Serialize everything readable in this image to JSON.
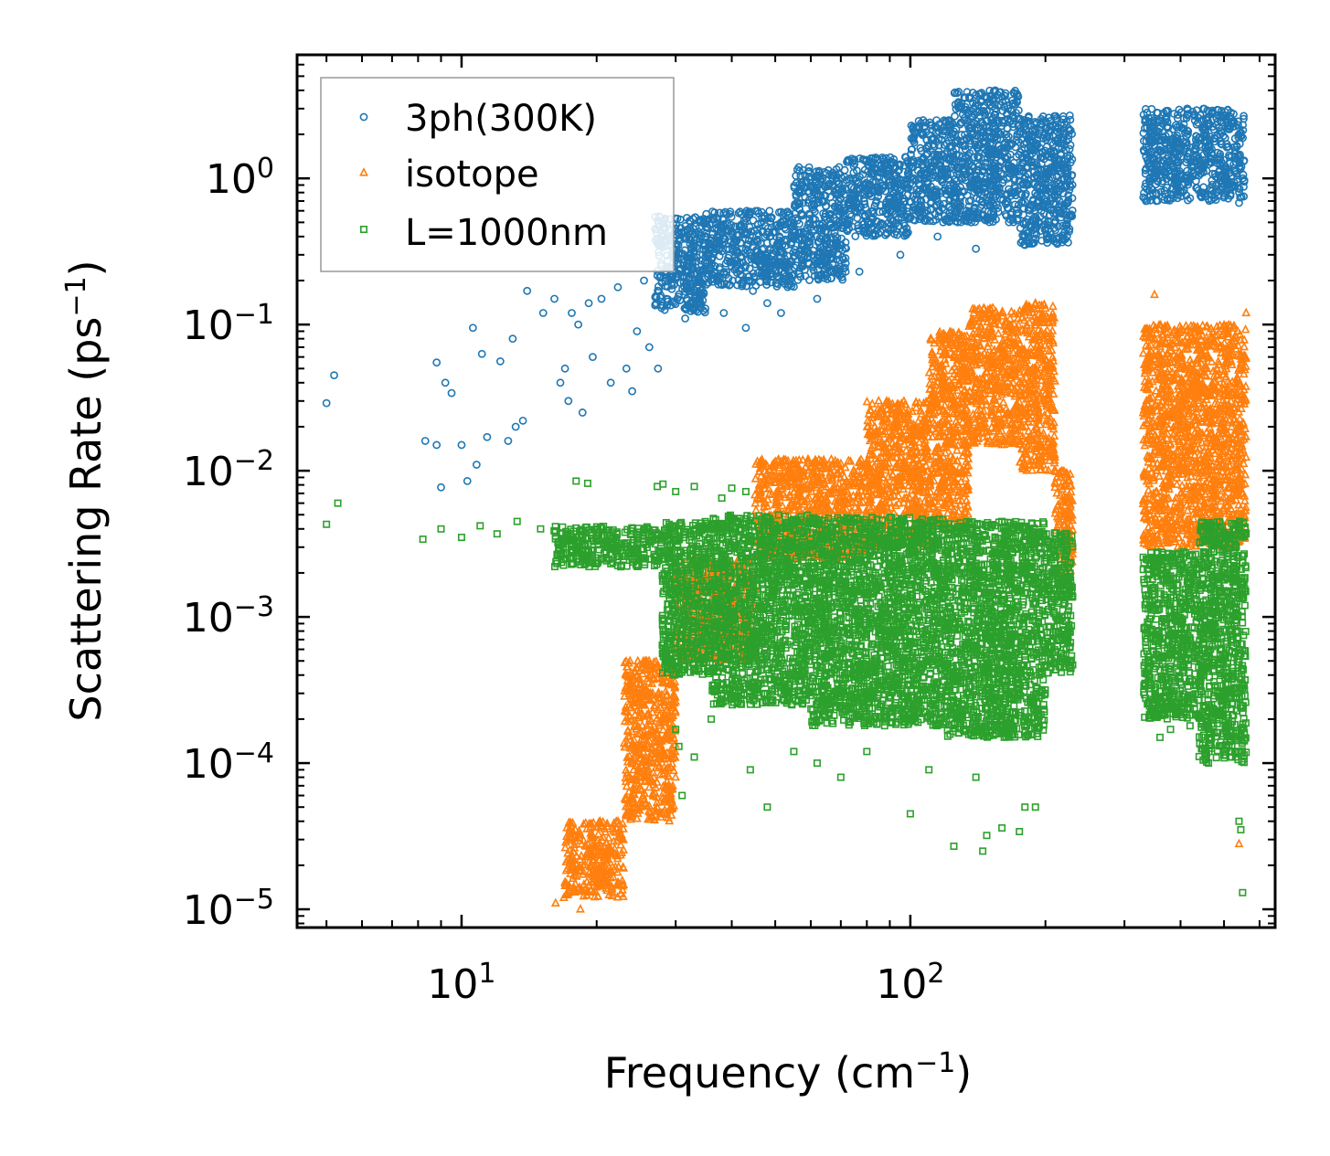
{
  "chart_data": {
    "type": "scatter",
    "title": "",
    "xlabel": {
      "base": "Frequency (cm",
      "sup": "−1",
      "tail": ")"
    },
    "ylabel": {
      "base": "Scattering Rate (ps",
      "sup": "−1",
      "tail": ")"
    },
    "x_scale": "log",
    "y_scale": "log",
    "xlim": [
      4.3,
      650
    ],
    "ylim": [
      7.5e-06,
      7.0
    ],
    "x_ticks": [
      {
        "value": 10,
        "base": "10",
        "exp": "1"
      },
      {
        "value": 100,
        "base": "10",
        "exp": "2"
      }
    ],
    "y_ticks": [
      {
        "value": 1e-05,
        "base": "10",
        "exp": "−5"
      },
      {
        "value": 0.0001,
        "base": "10",
        "exp": "−4"
      },
      {
        "value": 0.001,
        "base": "10",
        "exp": "−3"
      },
      {
        "value": 0.01,
        "base": "10",
        "exp": "−2"
      },
      {
        "value": 0.1,
        "base": "10",
        "exp": "−1"
      },
      {
        "value": 1,
        "base": "10",
        "exp": "0"
      }
    ],
    "legend_position": "top-left",
    "series": [
      {
        "name": "3ph(300K)",
        "marker": "circle",
        "color": "#1f77b4",
        "points": [
          [
            5,
            0.029
          ],
          [
            5.2,
            0.045
          ],
          [
            8.3,
            0.016
          ],
          [
            8.8,
            0.015
          ],
          [
            8.8,
            0.055
          ],
          [
            9.0,
            0.0077
          ],
          [
            9.2,
            0.04
          ],
          [
            9.5,
            0.034
          ],
          [
            10,
            0.015
          ],
          [
            10.3,
            0.0085
          ],
          [
            10.6,
            0.095
          ],
          [
            10.8,
            0.011
          ],
          [
            11.1,
            0.063
          ],
          [
            11.4,
            0.017
          ],
          [
            12.2,
            0.056
          ],
          [
            12.7,
            0.016
          ],
          [
            13.0,
            0.08
          ],
          [
            13.2,
            0.02
          ],
          [
            13.7,
            0.022
          ],
          [
            14.0,
            0.17
          ],
          [
            15.2,
            0.12
          ],
          [
            16.1,
            0.15
          ],
          [
            16.6,
            0.04
          ],
          [
            17,
            0.05
          ],
          [
            17.3,
            0.03
          ],
          [
            17.6,
            0.12
          ],
          [
            18.2,
            0.1
          ],
          [
            18.6,
            0.025
          ],
          [
            19.2,
            0.14
          ],
          [
            19.6,
            0.06
          ],
          [
            20.5,
            0.15
          ],
          [
            21.5,
            0.04
          ],
          [
            22.3,
            0.18
          ],
          [
            23.3,
            0.05
          ],
          [
            24,
            0.035
          ],
          [
            24.6,
            0.09
          ],
          [
            25.5,
            0.2
          ],
          [
            26.2,
            0.07
          ],
          [
            27.4,
            0.05
          ],
          [
            28.6,
            0.15
          ],
          [
            30.4,
            0.26
          ],
          [
            31.5,
            0.11
          ],
          [
            33.5,
            0.18
          ],
          [
            35.2,
            0.3
          ],
          [
            38.4,
            0.12
          ],
          [
            40.2,
            0.2
          ],
          [
            43,
            0.095
          ],
          [
            44.6,
            0.17
          ],
          [
            48,
            0.14
          ],
          [
            51.5,
            0.12
          ],
          [
            55,
            0.22
          ],
          [
            62,
            0.15
          ],
          [
            77,
            0.23
          ],
          [
            95,
            0.3
          ],
          [
            115,
            0.4
          ],
          [
            140,
            0.33
          ],
          [
            180,
            0.35
          ],
          [
            200,
            0.45
          ],
          [
            335,
            0.7
          ],
          [
            350,
            1.0
          ],
          [
            450,
            1.1
          ],
          [
            540,
            0.68
          ]
        ],
        "bands": [
          {
            "x": [
              27,
              35
            ],
            "y": [
              0.12,
              0.55
            ]
          },
          {
            "x": [
              35,
              55
            ],
            "y": [
              0.18,
              0.6
            ]
          },
          {
            "x": [
              55,
              72
            ],
            "y": [
              0.2,
              1.2
            ]
          },
          {
            "x": [
              72,
              100
            ],
            "y": [
              0.4,
              1.4
            ]
          },
          {
            "x": [
              100,
              125
            ],
            "y": [
              0.5,
              2.5
            ]
          },
          {
            "x": [
              125,
              175
            ],
            "y": [
              0.5,
              4.0
            ]
          },
          {
            "x": [
              175,
              230
            ],
            "y": [
              0.35,
              2.7
            ]
          },
          {
            "x": [
              330,
              555
            ],
            "y": [
              0.7,
              3.0
            ]
          }
        ]
      },
      {
        "name": "isotope",
        "marker": "triangle",
        "color": "#ff7f0e",
        "points": [
          [
            16.2,
            1.1e-05
          ],
          [
            16.9,
            1.2e-05
          ],
          [
            17.8,
            1.4e-05
          ],
          [
            18.4,
            1e-05
          ],
          [
            19.7,
            1.6e-05
          ],
          [
            21.2,
            2.2e-05
          ],
          [
            22.5,
            3.5e-05
          ],
          [
            24.3,
            5e-05
          ],
          [
            25.8,
            8e-05
          ],
          [
            27.2,
            0.00012
          ],
          [
            28.4,
            0.0002
          ],
          [
            29.5,
            0.00035
          ],
          [
            30.8,
            0.0005
          ],
          [
            33.2,
            0.00062
          ],
          [
            37.5,
            0.00075
          ],
          [
            40,
            0.00072
          ],
          [
            45,
            0.0016
          ],
          [
            55,
            0.003
          ],
          [
            70,
            0.007
          ],
          [
            85,
            0.03
          ],
          [
            100,
            0.01
          ],
          [
            122,
            0.08
          ],
          [
            150,
            0.12
          ],
          [
            160,
            0.06
          ],
          [
            175,
            0.04
          ],
          [
            190,
            0.14
          ],
          [
            210,
            0.01
          ],
          [
            225,
            0.003
          ],
          [
            350,
            0.16
          ],
          [
            360,
            0.043
          ],
          [
            380,
            0.025
          ],
          [
            430,
            0.032
          ],
          [
            540,
            2.8e-05
          ],
          [
            560,
            0.12
          ]
        ],
        "bands": [
          {
            "x": [
              17,
              23
            ],
            "y": [
              1.2e-05,
              4e-05
            ]
          },
          {
            "x": [
              23,
              30
            ],
            "y": [
              4e-05,
              0.0005
            ]
          },
          {
            "x": [
              30,
              45
            ],
            "y": [
              0.0005,
              0.0025
            ]
          },
          {
            "x": [
              45,
              80
            ],
            "y": [
              0.0025,
              0.012
            ]
          },
          {
            "x": [
              80,
              110
            ],
            "y": [
              0.003,
              0.03
            ]
          },
          {
            "x": [
              110,
              135
            ],
            "y": [
              0.004,
              0.09
            ]
          },
          {
            "x": [
              135,
              175
            ],
            "y": [
              0.015,
              0.13
            ]
          },
          {
            "x": [
              175,
              210
            ],
            "y": [
              0.01,
              0.14
            ]
          },
          {
            "x": [
              210,
              230
            ],
            "y": [
              0.002,
              0.01
            ]
          },
          {
            "x": [
              330,
              560
            ],
            "y": [
              0.003,
              0.1
            ]
          }
        ]
      },
      {
        "name": "L=1000nm",
        "marker": "square",
        "color": "#2ca02c",
        "points": [
          [
            5,
            0.0043
          ],
          [
            5.3,
            0.006
          ],
          [
            8.2,
            0.0034
          ],
          [
            9,
            0.004
          ],
          [
            10,
            0.0035
          ],
          [
            11,
            0.0042
          ],
          [
            12,
            0.0037
          ],
          [
            13.3,
            0.0045
          ],
          [
            15,
            0.004
          ],
          [
            17.2,
            0.0037
          ],
          [
            18,
            0.0085
          ],
          [
            19.1,
            0.0082
          ],
          [
            20,
            0.0033
          ],
          [
            22,
            0.003
          ],
          [
            24.5,
            0.0025
          ],
          [
            26,
            0.004
          ],
          [
            27.3,
            0.0078
          ],
          [
            28.1,
            0.0081
          ],
          [
            30,
            0.0072
          ],
          [
            33,
            0.0078
          ],
          [
            38,
            0.0065
          ],
          [
            40,
            0.0076
          ],
          [
            43,
            0.0072
          ],
          [
            30,
            0.00017
          ],
          [
            31,
            6e-05
          ],
          [
            30.5,
            0.00013
          ],
          [
            33,
            0.00011
          ],
          [
            36,
            0.0002
          ],
          [
            44,
            9e-05
          ],
          [
            48,
            5e-05
          ],
          [
            55,
            0.00012
          ],
          [
            62,
            0.0001
          ],
          [
            70,
            8e-05
          ],
          [
            80,
            0.00012
          ],
          [
            100,
            4.5e-05
          ],
          [
            110,
            9e-05
          ],
          [
            125,
            2.7e-05
          ],
          [
            140,
            8e-05
          ],
          [
            145,
            2.5e-05
          ],
          [
            148,
            3.2e-05
          ],
          [
            160,
            3.6e-05
          ],
          [
            175,
            3.4e-05
          ],
          [
            180,
            5e-05
          ],
          [
            190,
            5e-05
          ],
          [
            225,
            0.0011
          ],
          [
            230,
            0.00047
          ],
          [
            360,
            0.00015
          ],
          [
            380,
            0.00017
          ],
          [
            420,
            0.00018
          ],
          [
            540,
            4e-05
          ],
          [
            545,
            3.5e-05
          ],
          [
            550,
            1.3e-05
          ]
        ],
        "bands": [
          {
            "x": [
              16,
              28
            ],
            "y": [
              0.0022,
              0.0042
            ]
          },
          {
            "x": [
              28,
              36
            ],
            "y": [
              0.0004,
              0.0045
            ]
          },
          {
            "x": [
              36,
              60
            ],
            "y": [
              0.00025,
              0.005
            ]
          },
          {
            "x": [
              60,
              120
            ],
            "y": [
              0.00018,
              0.0048
            ]
          },
          {
            "x": [
              120,
              200
            ],
            "y": [
              0.00015,
              0.0045
            ]
          },
          {
            "x": [
              200,
              230
            ],
            "y": [
              0.0004,
              0.0038
            ]
          },
          {
            "x": [
              330,
              440
            ],
            "y": [
              0.0002,
              0.0028
            ]
          },
          {
            "x": [
              440,
              560
            ],
            "y": [
              0.0001,
              0.0045
            ]
          }
        ]
      }
    ]
  }
}
